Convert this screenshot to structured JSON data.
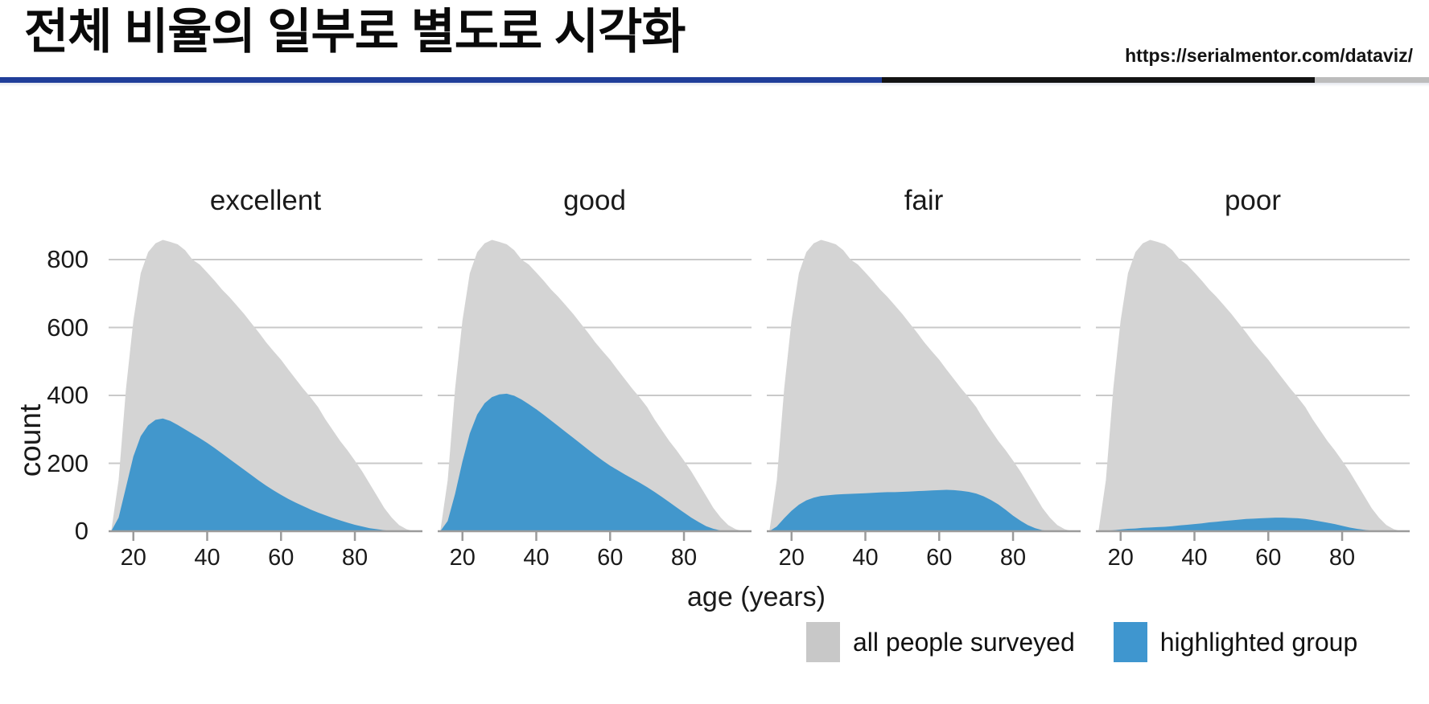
{
  "header": {
    "title": "전체 비율의 일부로 별도로 시각화",
    "url": "https://serialmentor.com/dataviz/"
  },
  "divider": {
    "segments": [
      {
        "color": "#203e99",
        "end_pct": 61.7
      },
      {
        "color": "#131313",
        "end_pct": 92.0
      },
      {
        "color": "#bcbcbc",
        "end_pct": 100
      }
    ]
  },
  "chart_data": {
    "type": "area",
    "layout": "small-multiples",
    "title": "",
    "xlabel": "age (years)",
    "ylabel": "count",
    "x_ticks": [
      20,
      40,
      60,
      80
    ],
    "y_ticks": [
      0,
      200,
      400,
      600,
      800
    ],
    "xlim": [
      13.3,
      98.3
    ],
    "ylim": [
      0,
      870
    ],
    "grid": "horizontal",
    "legend_position": "bottom-right",
    "ages": [
      14,
      16,
      18,
      20,
      22,
      24,
      26,
      28,
      30,
      32,
      34,
      36,
      38,
      40,
      42,
      44,
      46,
      48,
      50,
      52,
      54,
      56,
      58,
      60,
      62,
      64,
      66,
      68,
      70,
      72,
      74,
      76,
      78,
      80,
      82,
      84,
      86,
      88,
      90,
      92,
      94,
      96
    ],
    "all_people_surveyed": [
      0,
      150,
      420,
      620,
      760,
      822,
      848,
      858,
      852,
      845,
      828,
      800,
      785,
      762,
      738,
      712,
      690,
      665,
      640,
      612,
      585,
      556,
      530,
      505,
      476,
      448,
      420,
      394,
      366,
      330,
      298,
      266,
      238,
      208,
      176,
      140,
      104,
      68,
      40,
      18,
      6,
      0
    ],
    "panels": [
      {
        "title": "excellent",
        "highlighted": [
          0,
          40,
          130,
          220,
          280,
          312,
          328,
          332,
          325,
          313,
          300,
          287,
          274,
          260,
          245,
          229,
          213,
          197,
          181,
          165,
          149,
          134,
          120,
          107,
          95,
          84,
          74,
          64,
          55,
          47,
          39,
          32,
          25,
          19,
          14,
          9,
          6,
          3,
          1,
          0,
          0,
          0
        ]
      },
      {
        "title": "good",
        "highlighted": [
          0,
          30,
          110,
          205,
          288,
          344,
          377,
          395,
          403,
          405,
          399,
          388,
          374,
          359,
          343,
          326,
          309,
          292,
          275,
          258,
          241,
          224,
          208,
          193,
          180,
          167,
          155,
          143,
          130,
          116,
          101,
          86,
          70,
          55,
          40,
          27,
          15,
          7,
          2,
          0,
          0,
          0
        ]
      },
      {
        "title": "fair",
        "highlighted": [
          0,
          14,
          38,
          60,
          78,
          91,
          99,
          104,
          106,
          108,
          109,
          110,
          111,
          112,
          113,
          114,
          115,
          115,
          116,
          117,
          118,
          119,
          120,
          121,
          122,
          121,
          119,
          116,
          111,
          103,
          92,
          79,
          63,
          46,
          31,
          18,
          9,
          3,
          1,
          0,
          0,
          0
        ]
      },
      {
        "title": "poor",
        "highlighted": [
          0,
          1,
          3,
          5,
          7,
          8,
          10,
          11,
          12,
          13,
          15,
          17,
          19,
          21,
          23,
          26,
          28,
          30,
          32,
          34,
          36,
          37,
          38,
          39,
          40,
          40,
          39,
          38,
          36,
          33,
          29,
          25,
          21,
          16,
          11,
          7,
          4,
          2,
          1,
          0,
          0,
          0
        ]
      }
    ],
    "colors": {
      "all_people_surveyed": "#d4d4d4",
      "highlighted": "#4297cc",
      "gridline": "#c9c9c9",
      "axis": "#9b9b9b"
    },
    "series_names": [
      "all people surveyed",
      "highlighted group"
    ]
  },
  "legend": {
    "items": [
      {
        "label": "all people surveyed",
        "color": "#c8c8c8"
      },
      {
        "label": "highlighted group",
        "color": "#3f96cf"
      }
    ]
  }
}
